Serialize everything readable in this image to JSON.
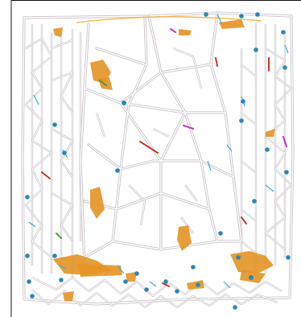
{
  "map": {
    "colors": {
      "road": "#c9c3c9",
      "hazard_area": "#e39424",
      "node": "#2c86b8",
      "cyan_marker": "#3ab0d8",
      "red_marker": "#c33a2a",
      "magenta_marker": "#c040c8",
      "green_marker": "#4f9a3a",
      "frame": "#111111"
    },
    "icons": [
      "node-dot-icon",
      "hazard-area-icon"
    ]
  }
}
